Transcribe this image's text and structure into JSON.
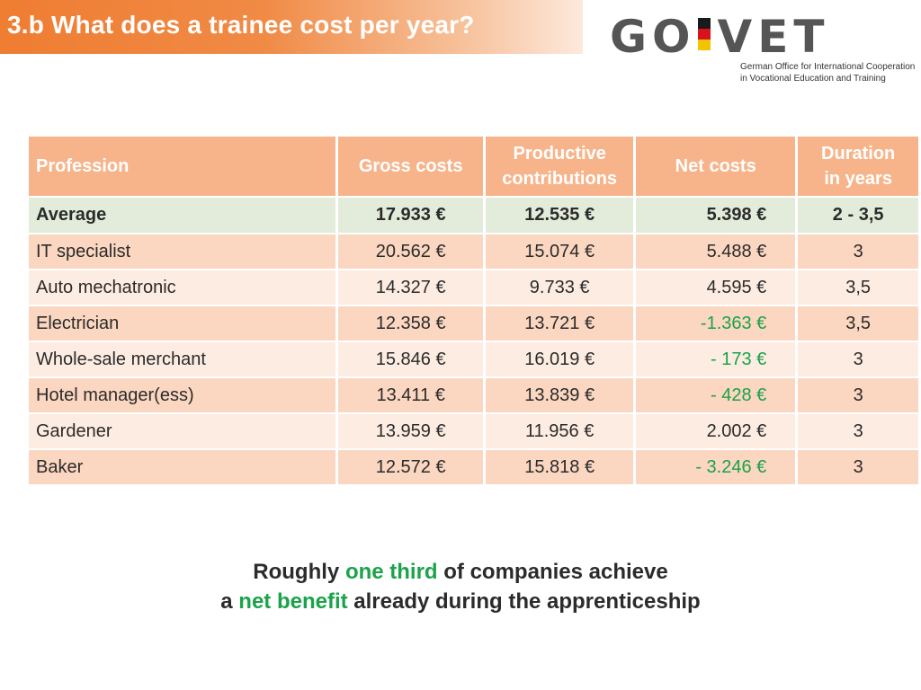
{
  "slide": {
    "title": "3.b  What does a trainee cost per year?"
  },
  "logo": {
    "word_left": "GO",
    "word_right": "VET",
    "subtitle_line1": "German Office for International Cooperation",
    "subtitle_line2": "in Vocational Education and Training",
    "flag_colors": [
      "#1a1a1a",
      "#d8121c",
      "#f3c300"
    ]
  },
  "table": {
    "headers": {
      "profession": "Profession",
      "gross": "Gross costs",
      "productive_line1": "Productive",
      "productive_line2": "contributions",
      "net": "Net costs",
      "duration_line1": "Duration",
      "duration_line2": "in years"
    },
    "rows": [
      {
        "profession": "Average",
        "gross": "17.933 €",
        "productive": "12.535 €",
        "net": "5.398 €",
        "duration": "2 - 3,5"
      },
      {
        "profession": "IT specialist",
        "gross": "20.562 €",
        "productive": "15.074 €",
        "net": "5.488 €",
        "duration": "3"
      },
      {
        "profession": "Auto mechatronic",
        "gross": "14.327 €",
        "productive": "9.733 €",
        "net": "4.595 €",
        "duration": "3,5"
      },
      {
        "profession": "Electrician",
        "gross": "12.358 €",
        "productive": "13.721 €",
        "net": "-1.363 €",
        "duration": "3,5"
      },
      {
        "profession": "Whole-sale merchant",
        "gross": "15.846 €",
        "productive": "16.019 €",
        "net": "- 173 €",
        "duration": "3"
      },
      {
        "profession": "Hotel manager(ess)",
        "gross": "13.411 €",
        "productive": "13.839 €",
        "net": "- 428 €",
        "duration": "3"
      },
      {
        "profession": "Gardener",
        "gross": "13.959 €",
        "productive": "11.956 €",
        "net": "2.002 €",
        "duration": "3"
      },
      {
        "profession": "Baker",
        "gross": "12.572 €",
        "productive": "15.818 €",
        "net": "- 3.246 €",
        "duration": "3"
      }
    ]
  },
  "note": {
    "line1_pre": "Roughly ",
    "line1_hl": "one third",
    "line1_post": " of companies achieve",
    "line2_pre": "a ",
    "line2_hl": "net benefit",
    "line2_post": " already during the apprenticeship"
  },
  "colors": {
    "accent_orange": "#ef7d32",
    "header_cell": "#f7b48a",
    "average_row": "#e3ecda",
    "row_dark": "#fbd6c0",
    "row_light": "#fdece1",
    "benefit_green": "#1aa34a"
  }
}
